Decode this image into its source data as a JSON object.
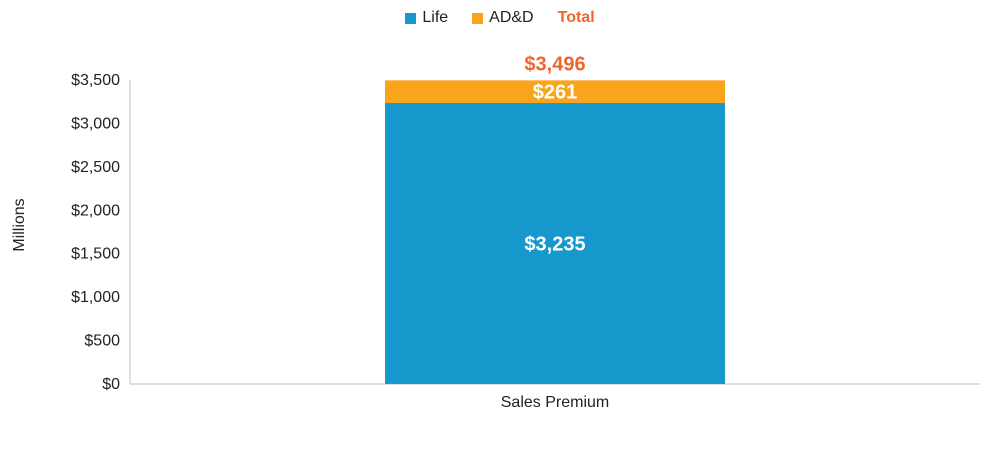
{
  "chart_data": {
    "type": "bar",
    "stacked": true,
    "categories": [
      "Sales Premium"
    ],
    "series": [
      {
        "name": "Life",
        "values": [
          3235
        ],
        "labels": [
          "$3,235"
        ]
      },
      {
        "name": "AD&D",
        "values": [
          261
        ],
        "labels": [
          "$261"
        ]
      }
    ],
    "totals": [
      3496
    ],
    "total_labels": [
      "$3,496"
    ],
    "total_legend": "Total",
    "ylabel": "Millions",
    "ylim": [
      0,
      3500
    ],
    "yticks": [
      0,
      500,
      1000,
      1500,
      2000,
      2500,
      3000,
      3500
    ],
    "ytick_labels": [
      "$0",
      "$500",
      "$1,000",
      "$1,500",
      "$2,000",
      "$2,500",
      "$3,000",
      "$3,500"
    ],
    "grid": false,
    "legend_position": "top-center",
    "colors": {
      "Life": "#1798CC",
      "AD&D": "#F9A51C",
      "Total": "#EF6530",
      "axis": "#BFBFBF",
      "label_inside": "#FFFFFF"
    }
  }
}
